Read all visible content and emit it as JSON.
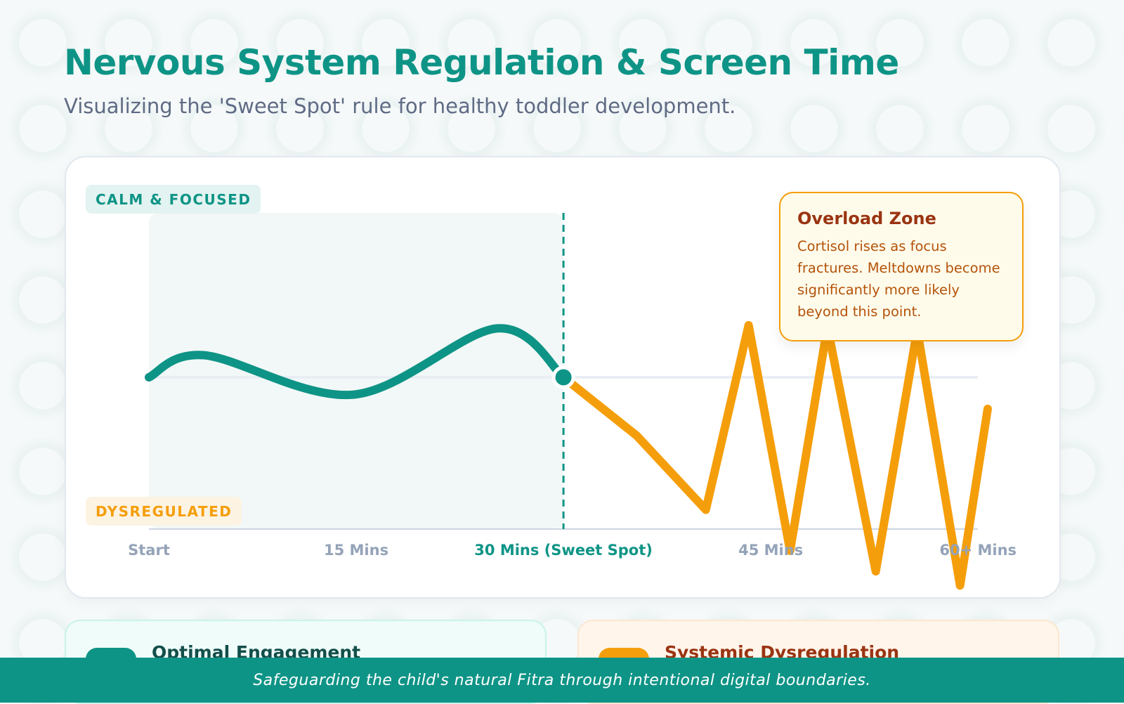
{
  "header": {
    "title": "Nervous System Regulation & Screen Time",
    "subtitle": "Visualizing the 'Sweet Spot' rule for healthy toddler development."
  },
  "chart_data": {
    "type": "line",
    "x_ticks": [
      "Start",
      "15 Mins",
      "30 Mins (Sweet Spot)",
      "45 Mins",
      "60+ Mins"
    ],
    "x_tick_values": [
      0,
      15,
      30,
      45,
      60
    ],
    "xlim": [
      0,
      60
    ],
    "ylim": [
      -100,
      104
    ],
    "band_labels": {
      "top": "CALM & FOCUSED",
      "bottom": "DYSREGULATED"
    },
    "sweet_spot_x": 30,
    "shaded_region": [
      0,
      30
    ],
    "grid": false,
    "series": [
      {
        "color": "#0e9486",
        "smooth": true,
        "x": [
          0,
          4,
          14.8,
          25.2,
          30
        ],
        "y": [
          0,
          14,
          -11,
          31,
          0
        ]
      },
      {
        "color": "#f59e0b",
        "smooth": false,
        "x": [
          30,
          35.3,
          40.3,
          43.4,
          46.4,
          49.1,
          52.6,
          55.6,
          58.7,
          60.7
        ],
        "y": [
          0,
          -37,
          -84,
          33,
          -110,
          32,
          -123,
          30,
          -132,
          -20
        ]
      }
    ]
  },
  "tooltip": {
    "title": "Overload Zone",
    "body": "Cortisol rises as focus fractures. Meltdowns become significantly more likely beyond this point."
  },
  "cards": [
    {
      "title": "Optimal Engagement",
      "color": "#0e9486"
    },
    {
      "title": "Systemic Dysregulation",
      "color": "#f59e0b"
    }
  ],
  "footer": {
    "text": "Safeguarding the child's natural Fitra through intentional digital boundaries."
  }
}
